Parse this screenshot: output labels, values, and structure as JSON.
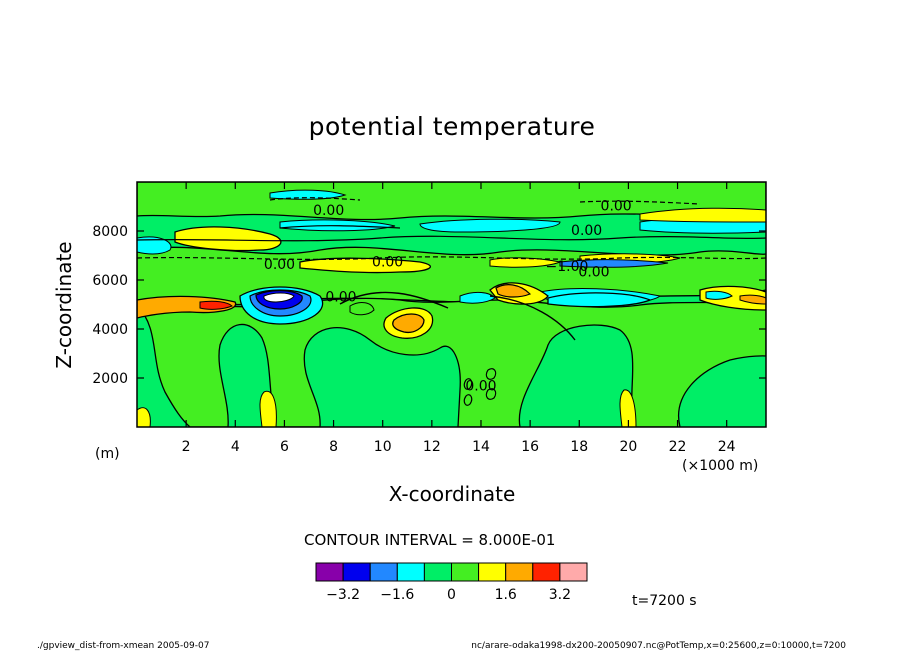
{
  "header": {
    "title": "potential temperature",
    "contour_interval": "CONTOUR INTERVAL = 8.000E-01",
    "time": "t=7200 s"
  },
  "footer": {
    "left_note": "./gpview_dist-from-xmean   2005-09-07",
    "right_note": "nc/arare-odaka1998-dx200-20050907.nc@PotTemp,x=0:25600,z=0:10000,t=7200"
  },
  "chart_data": {
    "type": "heatmap",
    "title": "potential temperature",
    "xlabel": "X-coordinate",
    "ylabel": "Z-coordinate",
    "x_unit": "(×1000 m)",
    "y_unit": "(m)",
    "xlim": [
      0,
      25600
    ],
    "ylim": [
      0,
      10000
    ],
    "x_ticks": [
      2,
      4,
      6,
      8,
      10,
      12,
      14,
      16,
      18,
      20,
      22,
      24
    ],
    "y_ticks": [
      2000,
      4000,
      6000,
      8000
    ],
    "contour_interval": 0.8,
    "contour_labels": [
      {
        "text": "0.00",
        "x": 7800,
        "z": 8850
      },
      {
        "text": "0.00",
        "x": 19500,
        "z": 9050
      },
      {
        "text": "0.00",
        "x": 18300,
        "z": 8050
      },
      {
        "text": "0.00",
        "x": 5800,
        "z": 6650
      },
      {
        "text": "0.00",
        "x": 10200,
        "z": 6750
      },
      {
        "text": "-1.00",
        "x": 17500,
        "z": 6580
      },
      {
        "text": "0.00",
        "x": 18600,
        "z": 6350
      },
      {
        "text": "0.00",
        "x": 8300,
        "z": 5320
      },
      {
        "text": "0.00",
        "x": 14000,
        "z": 1700
      }
    ],
    "colorbar": {
      "levels": [
        -4.0,
        -3.2,
        -2.4,
        -1.6,
        -0.8,
        0.0,
        0.8,
        1.6,
        2.4,
        3.2,
        4.0
      ],
      "colors": [
        "#8800aa",
        "#0000ee",
        "#2288ff",
        "#00ffff",
        "#00ee66",
        "#44ee22",
        "#ffff00",
        "#ffaa00",
        "#ff2200",
        "#ffaaaa"
      ],
      "tick_labels": [
        "-3.2",
        "-1.6",
        "0",
        "1.6",
        "3.2"
      ],
      "tick_values": [
        -3.2,
        -1.6,
        0,
        1.6,
        3.2
      ]
    }
  }
}
